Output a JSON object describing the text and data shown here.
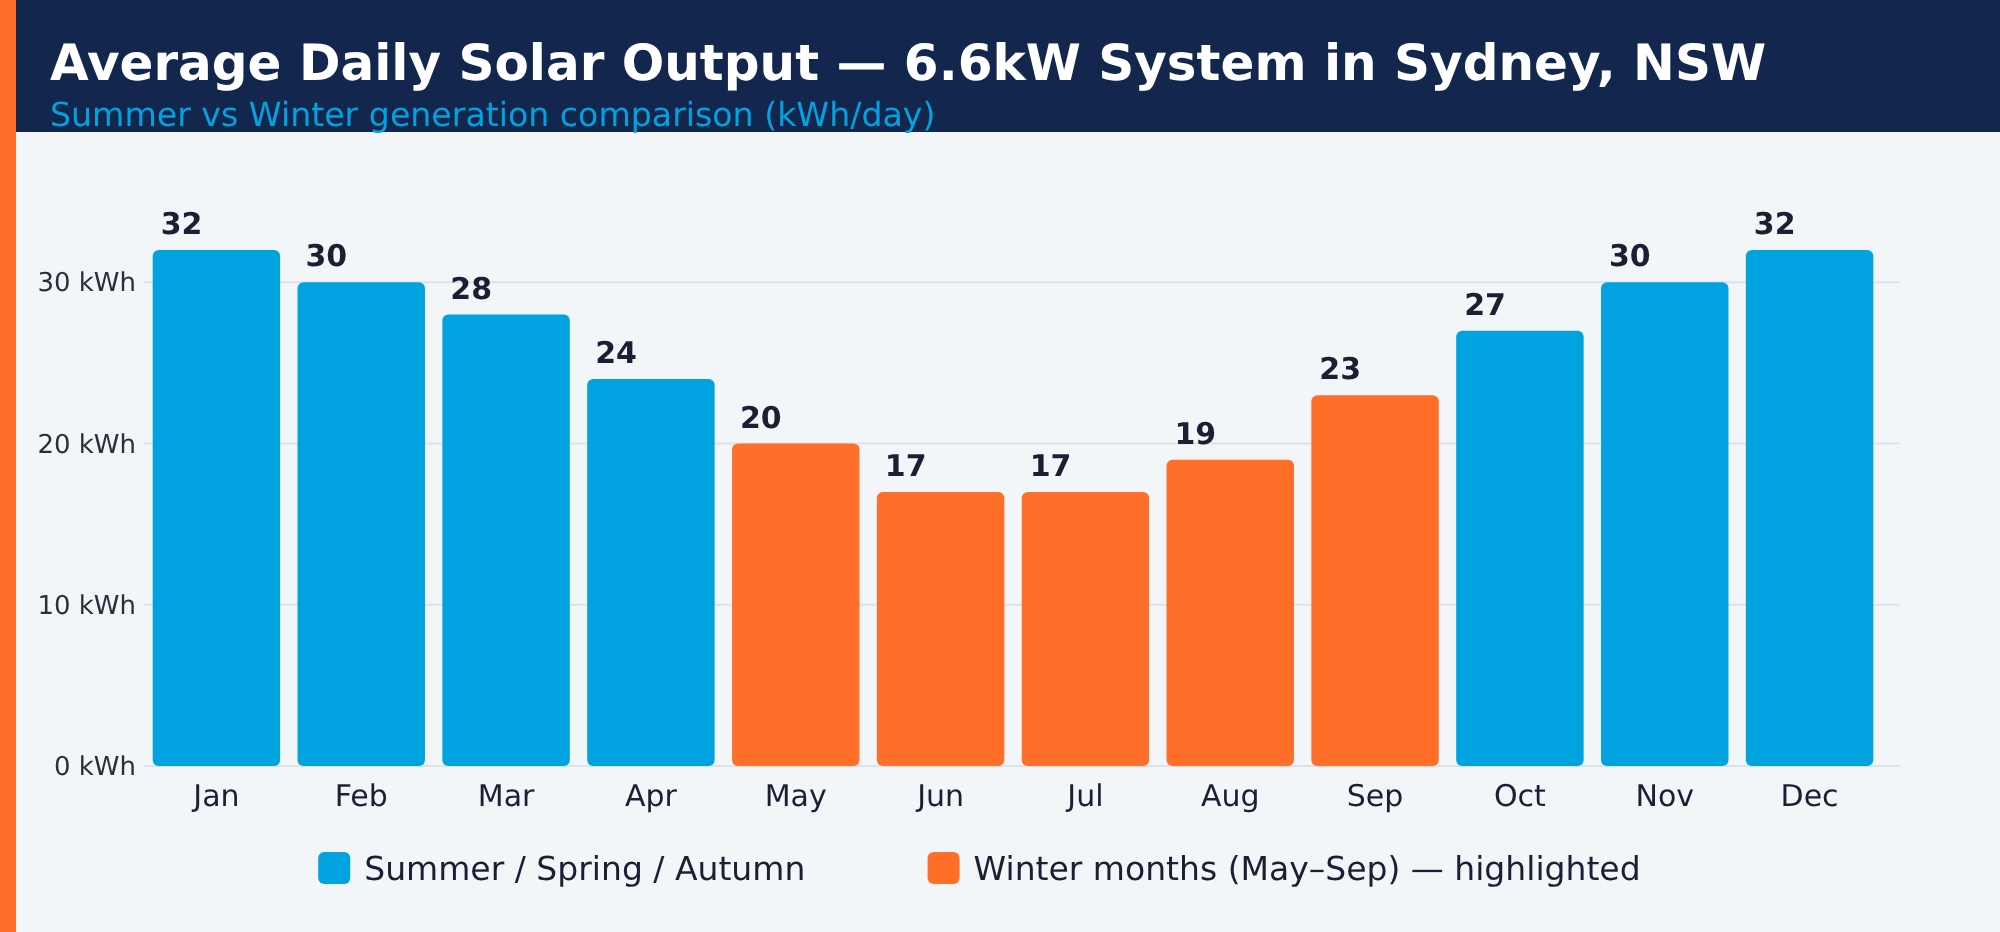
{
  "chart_data": {
    "type": "bar",
    "title": "Average Daily Solar Output — 6.6kW System in Sydney, NSW",
    "subtitle": "Summer vs Winter generation comparison (kWh/day)",
    "categories": [
      "Jan",
      "Feb",
      "Mar",
      "Apr",
      "May",
      "Jun",
      "Jul",
      "Aug",
      "Sep",
      "Oct",
      "Nov",
      "Dec"
    ],
    "series": [
      {
        "name": "Summer / Spring / Autumn",
        "color": "#00a2df",
        "values": [
          32,
          30,
          28,
          24,
          null,
          null,
          null,
          null,
          null,
          27,
          30,
          32
        ]
      },
      {
        "name": "Winter months (May–Sep) — highlighted",
        "color": "#ff6f29",
        "values": [
          null,
          null,
          null,
          null,
          20,
          17,
          17,
          19,
          23,
          null,
          null,
          null
        ]
      }
    ],
    "stacked": true,
    "ylim": [
      0,
      32
    ],
    "yticks": [
      {
        "value": 0,
        "label": "0 kWh"
      },
      {
        "value": 10,
        "label": "10 kWh"
      },
      {
        "value": 20,
        "label": "20 kWh"
      },
      {
        "value": 30,
        "label": "30 kWh"
      }
    ],
    "grid": "y",
    "legend": "bottom",
    "data_labels": true
  }
}
